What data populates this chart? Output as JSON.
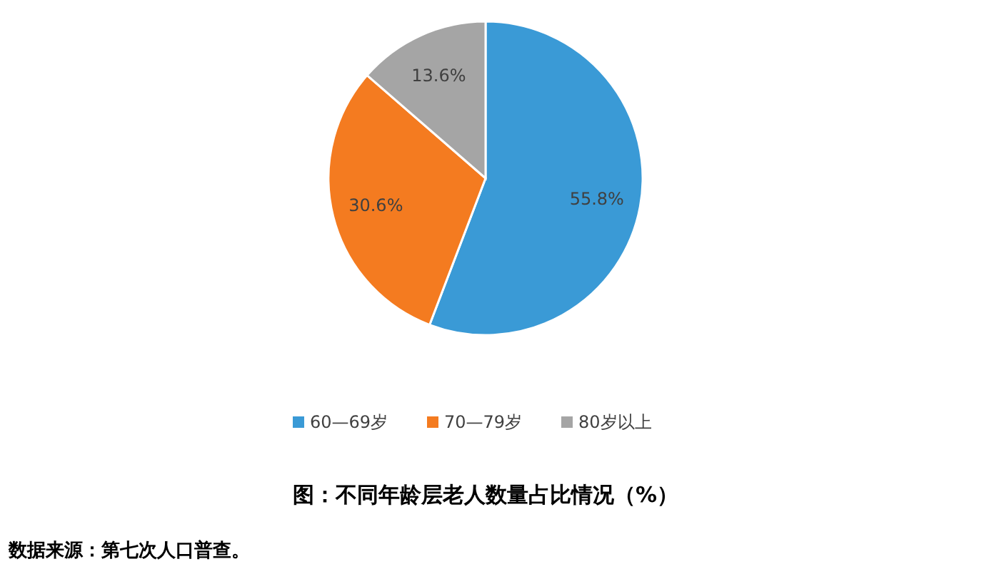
{
  "chart_data": {
    "type": "pie",
    "title": "图：不同年龄层老人数量占比情况（%）",
    "annotations": [
      "数据来源：第七次人口普查。"
    ],
    "categories": [
      "60—69岁",
      "70—79岁",
      "80岁以上"
    ],
    "values": [
      55.8,
      30.6,
      13.6
    ],
    "colors": [
      "#3a9ad6",
      "#f47b20",
      "#a5a5a5"
    ],
    "value_labels": [
      "55.8%",
      "30.6%",
      "13.6%"
    ],
    "legend": "bottom"
  }
}
